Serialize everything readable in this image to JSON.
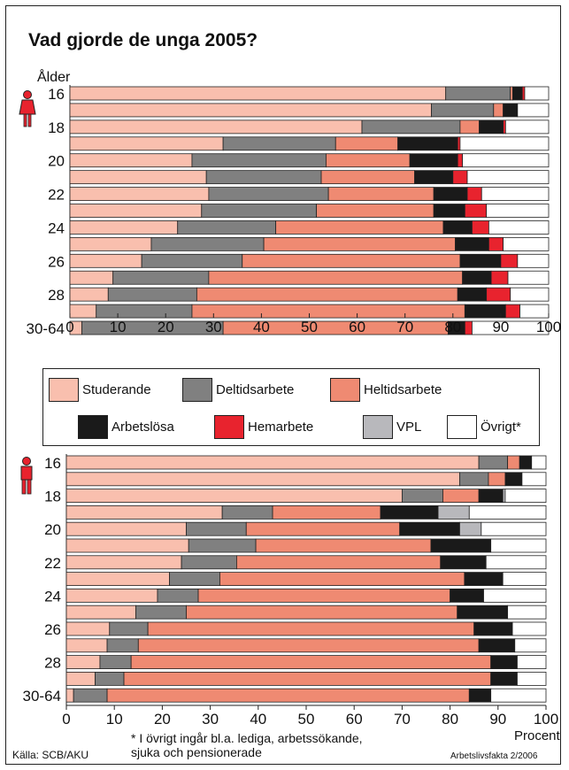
{
  "title": "Vad gjorde de unga 2005?",
  "ylabel": "Ålder",
  "footnote_line1": "* I övrigt ingår bl.a. lediga, arbetssökande,",
  "footnote_line2": "sjuka och pensionerade",
  "source": "Källa: SCB/AKU",
  "credit": "Arbetslivsfakta 2/2006",
  "xlabel": "Procent",
  "icons": [
    "female-icon",
    "male-icon"
  ],
  "legend": [
    {
      "name": "Studerande",
      "color": "#f9bfae"
    },
    {
      "name": "Deltidsarbete",
      "color": "#808080"
    },
    {
      "name": "Heltidsarbete",
      "color": "#ef8a72"
    },
    {
      "name": "Arbetslösa",
      "color": "#1a1a1a"
    },
    {
      "name": "Hemarbete",
      "color": "#e8232e"
    },
    {
      "name": "VPL",
      "color": "#b8b8bc"
    },
    {
      "name": "Övrigt*",
      "color": "#ffffff"
    }
  ],
  "chart_data": [
    {
      "type": "bar",
      "stacked": true,
      "orientation": "horizontal",
      "group": "women",
      "x_ticks": [
        0,
        10,
        20,
        30,
        40,
        50,
        60,
        70,
        80,
        90,
        100
      ],
      "xlim": [
        0,
        100
      ],
      "ylabel": "Ålder",
      "categories": [
        "16",
        "17",
        "18",
        "19",
        "20",
        "21",
        "22",
        "23",
        "24",
        "25",
        "26",
        "27",
        "28",
        "29",
        "30-64"
      ],
      "category_labels": [
        "16",
        "",
        "18",
        "",
        "20",
        "",
        "22",
        "",
        "24",
        "",
        "26",
        "",
        "28",
        "",
        "30-64"
      ],
      "series": [
        {
          "name": "Studerande",
          "values": [
            78.5,
            75.5,
            61,
            32,
            25.5,
            28.5,
            29,
            27.5,
            22.5,
            17,
            15,
            9,
            8,
            5.5,
            2.5
          ]
        },
        {
          "name": "Deltidsarbete",
          "values": [
            13.5,
            13,
            20.5,
            23.5,
            28,
            24,
            25,
            24,
            20.5,
            23.5,
            21,
            20,
            18.5,
            20,
            29.5
          ]
        },
        {
          "name": "Heltidsarbete",
          "values": [
            0.5,
            2,
            4,
            13,
            17.5,
            19.5,
            22,
            24.5,
            35,
            40,
            45.5,
            53,
            54.5,
            57,
            47
          ]
        },
        {
          "name": "Arbetslösa",
          "values": [
            2,
            3,
            5,
            12.5,
            10,
            8,
            7,
            6.5,
            6,
            7,
            8.5,
            6,
            6,
            8.5,
            3.5
          ]
        },
        {
          "name": "Hemarbete",
          "values": [
            0.5,
            0,
            0.5,
            0.5,
            1,
            3,
            3,
            4.5,
            3.5,
            3,
            3.5,
            3.5,
            5,
            3,
            1.5
          ]
        },
        {
          "name": "VPL",
          "values": [
            0,
            0,
            0,
            0,
            0,
            0,
            0,
            0,
            0,
            0,
            0,
            0,
            0,
            0,
            0
          ]
        },
        {
          "name": "Övrigt*",
          "values": [
            5,
            6.5,
            9,
            18.5,
            18,
            17,
            14,
            13,
            12.5,
            9.5,
            6.5,
            8.5,
            8,
            6,
            16
          ]
        }
      ]
    },
    {
      "type": "bar",
      "stacked": true,
      "orientation": "horizontal",
      "group": "men",
      "x_ticks": [
        0,
        10,
        20,
        30,
        40,
        50,
        60,
        70,
        80,
        90,
        100
      ],
      "xlim": [
        0,
        100
      ],
      "xlabel": "Procent",
      "categories": [
        "16",
        "17",
        "18",
        "19",
        "20",
        "21",
        "22",
        "23",
        "24",
        "25",
        "26",
        "27",
        "28",
        "29",
        "30-64"
      ],
      "category_labels": [
        "16",
        "",
        "18",
        "",
        "20",
        "",
        "22",
        "",
        "24",
        "",
        "26",
        "",
        "28",
        "",
        "30-64"
      ],
      "series": [
        {
          "name": "Studerande",
          "values": [
            86,
            82,
            70,
            32.5,
            25,
            25.5,
            24,
            21.5,
            19,
            14.5,
            9,
            8.5,
            7,
            6,
            1.5
          ]
        },
        {
          "name": "Deltidsarbete",
          "values": [
            6,
            6,
            8.5,
            10.5,
            12.5,
            14,
            11.5,
            10.5,
            8.5,
            10.5,
            8,
            6.5,
            6.5,
            6,
            7
          ]
        },
        {
          "name": "Heltidsarbete",
          "values": [
            2.5,
            3.5,
            7.5,
            22.5,
            32,
            36.5,
            42.5,
            51,
            52.5,
            56.5,
            68,
            71,
            75,
            76.5,
            75.5
          ]
        },
        {
          "name": "Arbetslösa",
          "values": [
            2.5,
            3.5,
            5,
            12,
            12.5,
            12.5,
            9.5,
            8,
            7,
            10.5,
            8,
            7.5,
            5.5,
            5.5,
            4.5
          ]
        },
        {
          "name": "Hemarbete",
          "values": [
            0,
            0,
            0,
            0,
            0,
            0,
            0,
            0,
            0,
            0,
            0,
            0,
            0,
            0,
            0
          ]
        },
        {
          "name": "VPL",
          "values": [
            0,
            0,
            0.5,
            6.5,
            4.5,
            0,
            0,
            0,
            0,
            0,
            0,
            0,
            0,
            0,
            0
          ]
        },
        {
          "name": "Övrigt*",
          "values": [
            3,
            5,
            8.5,
            16,
            13.5,
            11.5,
            12.5,
            9,
            13,
            8,
            7,
            6.5,
            6,
            6,
            11.5
          ]
        }
      ]
    }
  ]
}
